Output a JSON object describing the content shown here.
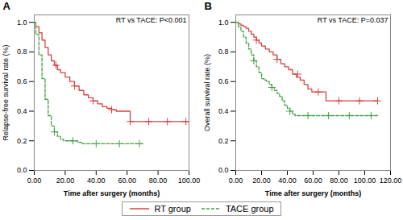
{
  "chart_data": [
    {
      "type": "step",
      "title": "A",
      "annotation": "RT vs TACE: P<0.001",
      "xlabel": "Time after surgery (months)",
      "ylabel": "Relapse-free survival rate (%)",
      "xlim": [
        0,
        100
      ],
      "ylim": [
        0.0,
        1.05
      ],
      "xticks": [
        {
          "value": 0,
          "label": "0.00"
        },
        {
          "value": 20,
          "label": "20.00"
        },
        {
          "value": 40,
          "label": "40.00"
        },
        {
          "value": 60,
          "label": "60.00"
        },
        {
          "value": 80,
          "label": "80.00"
        },
        {
          "value": 100,
          "label": "100.00"
        }
      ],
      "yticks": [
        {
          "value": 0,
          "label": "0.0"
        },
        0.2,
        0.4,
        0.6,
        0.8,
        {
          "value": 1,
          "label": "1.0"
        }
      ],
      "legend": "bottom",
      "series": [
        {
          "name": "RT group",
          "color": "#d94040",
          "line_style": "solid",
          "marker": "plus",
          "x": [
            0,
            1,
            3,
            5,
            7,
            9,
            11,
            13,
            15,
            17,
            20,
            23,
            26,
            29,
            32,
            35,
            38,
            41,
            44,
            47,
            50,
            53,
            56,
            59,
            62,
            65,
            68,
            71,
            74,
            77,
            80,
            85,
            90,
            95,
            100
          ],
          "values": [
            1.0,
            0.97,
            0.93,
            0.88,
            0.83,
            0.78,
            0.74,
            0.71,
            0.68,
            0.66,
            0.63,
            0.6,
            0.57,
            0.54,
            0.51,
            0.49,
            0.47,
            0.45,
            0.43,
            0.42,
            0.41,
            0.4,
            0.4,
            0.4,
            0.33,
            0.33,
            0.33,
            0.33,
            0.33,
            0.33,
            0.33,
            0.33,
            0.33,
            0.33,
            0.33
          ],
          "censor_x": [
            14,
            26,
            38,
            50,
            62,
            74,
            86,
            98
          ],
          "censor_y": [
            0.71,
            0.57,
            0.47,
            0.41,
            0.33,
            0.33,
            0.33,
            0.33
          ]
        },
        {
          "name": "TACE group",
          "color": "#40a040",
          "line_style": "dashed",
          "marker": "plus",
          "x": [
            0,
            1,
            3,
            5,
            7,
            9,
            11,
            13,
            15,
            17,
            19,
            22,
            25,
            28,
            31,
            34,
            37,
            40,
            45,
            50,
            55,
            60,
            65,
            70
          ],
          "values": [
            1.0,
            0.92,
            0.78,
            0.62,
            0.48,
            0.37,
            0.3,
            0.26,
            0.23,
            0.21,
            0.2,
            0.2,
            0.2,
            0.19,
            0.18,
            0.18,
            0.18,
            0.18,
            0.18,
            0.18,
            0.18,
            0.18,
            0.18,
            0.18
          ],
          "censor_x": [
            13,
            25,
            40,
            55,
            68
          ],
          "censor_y": [
            0.26,
            0.2,
            0.18,
            0.18,
            0.18
          ]
        }
      ]
    },
    {
      "type": "step",
      "title": "B",
      "annotation": "RT vs TACE: P=0.037",
      "xlabel": "Time after surgery (months)",
      "ylabel": "Overall survival rate (%)",
      "xlim": [
        0,
        120
      ],
      "ylim": [
        0.0,
        1.05
      ],
      "xticks": [
        {
          "value": 0,
          "label": "0.00"
        },
        {
          "value": 20,
          "label": "20.00"
        },
        {
          "value": 40,
          "label": "40.00"
        },
        {
          "value": 60,
          "label": "60.00"
        },
        {
          "value": 80,
          "label": "80.00"
        },
        {
          "value": 100,
          "label": "100.00"
        },
        {
          "value": 120,
          "label": "120.00"
        }
      ],
      "yticks": [
        {
          "value": 0,
          "label": "0.0"
        },
        0.2,
        0.4,
        0.6,
        0.8,
        {
          "value": 1,
          "label": "1.0"
        }
      ],
      "legend": "bottom",
      "series": [
        {
          "name": "RT group",
          "color": "#d94040",
          "line_style": "solid",
          "marker": "plus",
          "x": [
            0,
            2,
            4,
            6,
            8,
            10,
            12,
            14,
            16,
            18,
            20,
            23,
            26,
            29,
            32,
            35,
            38,
            41,
            44,
            47,
            50,
            53,
            56,
            59,
            62,
            65,
            70,
            75,
            80,
            85,
            90,
            95,
            100,
            105,
            110
          ],
          "values": [
            1.0,
            0.99,
            0.98,
            0.97,
            0.96,
            0.94,
            0.92,
            0.9,
            0.88,
            0.86,
            0.84,
            0.82,
            0.8,
            0.78,
            0.75,
            0.72,
            0.7,
            0.68,
            0.65,
            0.63,
            0.61,
            0.58,
            0.55,
            0.53,
            0.53,
            0.53,
            0.47,
            0.47,
            0.47,
            0.47,
            0.47,
            0.47,
            0.47,
            0.47,
            0.47
          ],
          "censor_x": [
            16,
            32,
            48,
            64,
            80,
            96,
            110
          ],
          "censor_y": [
            0.88,
            0.75,
            0.65,
            0.53,
            0.47,
            0.47,
            0.47
          ]
        },
        {
          "name": "TACE group",
          "color": "#40a040",
          "line_style": "dashed",
          "marker": "plus",
          "x": [
            0,
            2,
            4,
            6,
            8,
            10,
            12,
            14,
            16,
            18,
            20,
            22,
            24,
            26,
            28,
            30,
            32,
            34,
            36,
            38,
            40,
            42,
            44,
            46,
            48,
            52,
            56,
            60,
            65,
            70,
            75,
            80,
            85,
            90,
            100,
            110
          ],
          "values": [
            1.0,
            0.97,
            0.94,
            0.9,
            0.86,
            0.82,
            0.78,
            0.74,
            0.7,
            0.66,
            0.62,
            0.61,
            0.6,
            0.58,
            0.56,
            0.54,
            0.52,
            0.5,
            0.47,
            0.44,
            0.42,
            0.4,
            0.38,
            0.37,
            0.37,
            0.37,
            0.37,
            0.37,
            0.37,
            0.37,
            0.37,
            0.37,
            0.37,
            0.37,
            0.37,
            0.37
          ],
          "censor_x": [
            14,
            28,
            42,
            56,
            72,
            88,
            105
          ],
          "censor_y": [
            0.74,
            0.56,
            0.4,
            0.37,
            0.37,
            0.37,
            0.37
          ]
        }
      ]
    }
  ]
}
